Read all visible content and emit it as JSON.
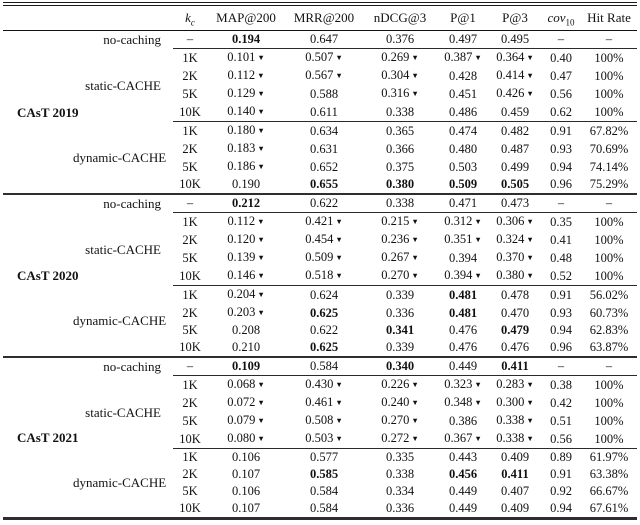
{
  "table": {
    "header": {
      "kc_base": "k",
      "kc_sub": "c",
      "map": "MAP@200",
      "mrr": "MRR@200",
      "ndcg": "nDCG@3",
      "p1": "P@1",
      "p3": "P@3",
      "cov_base": "cov",
      "cov_sub": "10",
      "hit_rate": "Hit Rate"
    },
    "marker_legend": {
      "down_triangle": "▼"
    },
    "sections": [
      {
        "dataset": "CAsT 2019",
        "groups": [
          {
            "method": "no-caching",
            "rows": [
              {
                "kc": "–",
                "values": [
                  "0.194",
                  "0.647",
                  "0.376",
                  "0.497",
                  "0.495",
                  "–",
                  "–"
                ],
                "bold": [
                  0
                ]
              }
            ]
          },
          {
            "method": "static-CACHE",
            "rows": [
              {
                "kc": "1K",
                "values": [
                  "0.101▼",
                  "0.507▼",
                  "0.269▼",
                  "0.387▼",
                  "0.364▼",
                  "0.40",
                  "100%"
                ],
                "bold": []
              },
              {
                "kc": "2K",
                "values": [
                  "0.112▼",
                  "0.567▼",
                  "0.304▼",
                  "0.428",
                  "0.414▼",
                  "0.47",
                  "100%"
                ],
                "bold": []
              },
              {
                "kc": "5K",
                "values": [
                  "0.129▼",
                  "0.588",
                  "0.316▼",
                  "0.451",
                  "0.426▼",
                  "0.56",
                  "100%"
                ],
                "bold": []
              },
              {
                "kc": "10K",
                "values": [
                  "0.140▼",
                  "0.611",
                  "0.338",
                  "0.486",
                  "0.459",
                  "0.62",
                  "100%"
                ],
                "bold": []
              }
            ]
          },
          {
            "method": "dynamic-CACHE",
            "rows": [
              {
                "kc": "1K",
                "values": [
                  "0.180▼",
                  "0.634",
                  "0.365",
                  "0.474",
                  "0.482",
                  "0.91",
                  "67.82%"
                ],
                "bold": []
              },
              {
                "kc": "2K",
                "values": [
                  "0.183▼",
                  "0.631",
                  "0.366",
                  "0.480",
                  "0.487",
                  "0.93",
                  "70.69%"
                ],
                "bold": []
              },
              {
                "kc": "5K",
                "values": [
                  "0.186▼",
                  "0.652",
                  "0.375",
                  "0.503",
                  "0.499",
                  "0.94",
                  "74.14%"
                ],
                "bold": []
              },
              {
                "kc": "10K",
                "values": [
                  "0.190",
                  "0.655",
                  "0.380",
                  "0.509",
                  "0.505",
                  "0.96",
                  "75.29%"
                ],
                "bold": [
                  1,
                  2,
                  3,
                  4
                ]
              }
            ]
          }
        ]
      },
      {
        "dataset": "CAsT 2020",
        "groups": [
          {
            "method": "no-caching",
            "rows": [
              {
                "kc": "–",
                "values": [
                  "0.212",
                  "0.622",
                  "0.338",
                  "0.471",
                  "0.473",
                  "–",
                  "–"
                ],
                "bold": [
                  0
                ]
              }
            ]
          },
          {
            "method": "static-CACHE",
            "rows": [
              {
                "kc": "1K",
                "values": [
                  "0.112▼",
                  "0.421▼",
                  "0.215▼",
                  "0.312▼",
                  "0.306▼",
                  "0.35",
                  "100%"
                ],
                "bold": []
              },
              {
                "kc": "2K",
                "values": [
                  "0.120▼",
                  "0.454▼",
                  "0.236▼",
                  "0.351▼",
                  "0.324▼",
                  "0.41",
                  "100%"
                ],
                "bold": []
              },
              {
                "kc": "5K",
                "values": [
                  "0.139▼",
                  "0.509▼",
                  "0.267▼",
                  "0.394",
                  "0.370▼",
                  "0.48",
                  "100%"
                ],
                "bold": []
              },
              {
                "kc": "10K",
                "values": [
                  "0.146▼",
                  "0.518▼",
                  "0.270▼",
                  "0.394▼",
                  "0.380▼",
                  "0.52",
                  "100%"
                ],
                "bold": []
              }
            ]
          },
          {
            "method": "dynamic-CACHE",
            "rows": [
              {
                "kc": "1K",
                "values": [
                  "0.204▼",
                  "0.624",
                  "0.339",
                  "0.481",
                  "0.478",
                  "0.91",
                  "56.02%"
                ],
                "bold": [
                  3
                ]
              },
              {
                "kc": "2K",
                "values": [
                  "0.203▼",
                  "0.625",
                  "0.336",
                  "0.481",
                  "0.470",
                  "0.93",
                  "60.73%"
                ],
                "bold": [
                  1,
                  3
                ]
              },
              {
                "kc": "5K",
                "values": [
                  "0.208",
                  "0.622",
                  "0.341",
                  "0.476",
                  "0.479",
                  "0.94",
                  "62.83%"
                ],
                "bold": [
                  2,
                  4
                ]
              },
              {
                "kc": "10K",
                "values": [
                  "0.210",
                  "0.625",
                  "0.339",
                  "0.476",
                  "0.476",
                  "0.96",
                  "63.87%"
                ],
                "bold": [
                  1
                ]
              }
            ]
          }
        ]
      },
      {
        "dataset": "CAsT 2021",
        "groups": [
          {
            "method": "no-caching",
            "rows": [
              {
                "kc": "–",
                "values": [
                  "0.109",
                  "0.584",
                  "0.340",
                  "0.449",
                  "0.411",
                  "–",
                  "–"
                ],
                "bold": [
                  0,
                  2,
                  4
                ]
              }
            ]
          },
          {
            "method": "static-CACHE",
            "rows": [
              {
                "kc": "1K",
                "values": [
                  "0.068▼",
                  "0.430▼",
                  "0.226▼",
                  "0.323▼",
                  "0.283▼",
                  "0.38",
                  "100%"
                ],
                "bold": []
              },
              {
                "kc": "2K",
                "values": [
                  "0.072▼",
                  "0.461▼",
                  "0.240▼",
                  "0.348▼",
                  "0.300▼",
                  "0.42",
                  "100%"
                ],
                "bold": []
              },
              {
                "kc": "5K",
                "values": [
                  "0.079▼",
                  "0.508▼",
                  "0.270▼",
                  "0.386",
                  "0.338▼",
                  "0.51",
                  "100%"
                ],
                "bold": []
              },
              {
                "kc": "10K",
                "values": [
                  "0.080▼",
                  "0.503▼",
                  "0.272▼",
                  "0.367▼",
                  "0.338▼",
                  "0.56",
                  "100%"
                ],
                "bold": []
              }
            ]
          },
          {
            "method": "dynamic-CACHE",
            "rows": [
              {
                "kc": "1K",
                "values": [
                  "0.106",
                  "0.577",
                  "0.335",
                  "0.443",
                  "0.409",
                  "0.89",
                  "61.97%"
                ],
                "bold": []
              },
              {
                "kc": "2K",
                "values": [
                  "0.107",
                  "0.585",
                  "0.338",
                  "0.456",
                  "0.411",
                  "0.91",
                  "63.38%"
                ],
                "bold": [
                  1,
                  3,
                  4
                ]
              },
              {
                "kc": "5K",
                "values": [
                  "0.106",
                  "0.584",
                  "0.334",
                  "0.449",
                  "0.407",
                  "0.92",
                  "66.67%"
                ],
                "bold": []
              },
              {
                "kc": "10K",
                "values": [
                  "0.107",
                  "0.584",
                  "0.336",
                  "0.449",
                  "0.409",
                  "0.94",
                  "67.61%"
                ],
                "bold": []
              }
            ]
          }
        ]
      }
    ]
  }
}
